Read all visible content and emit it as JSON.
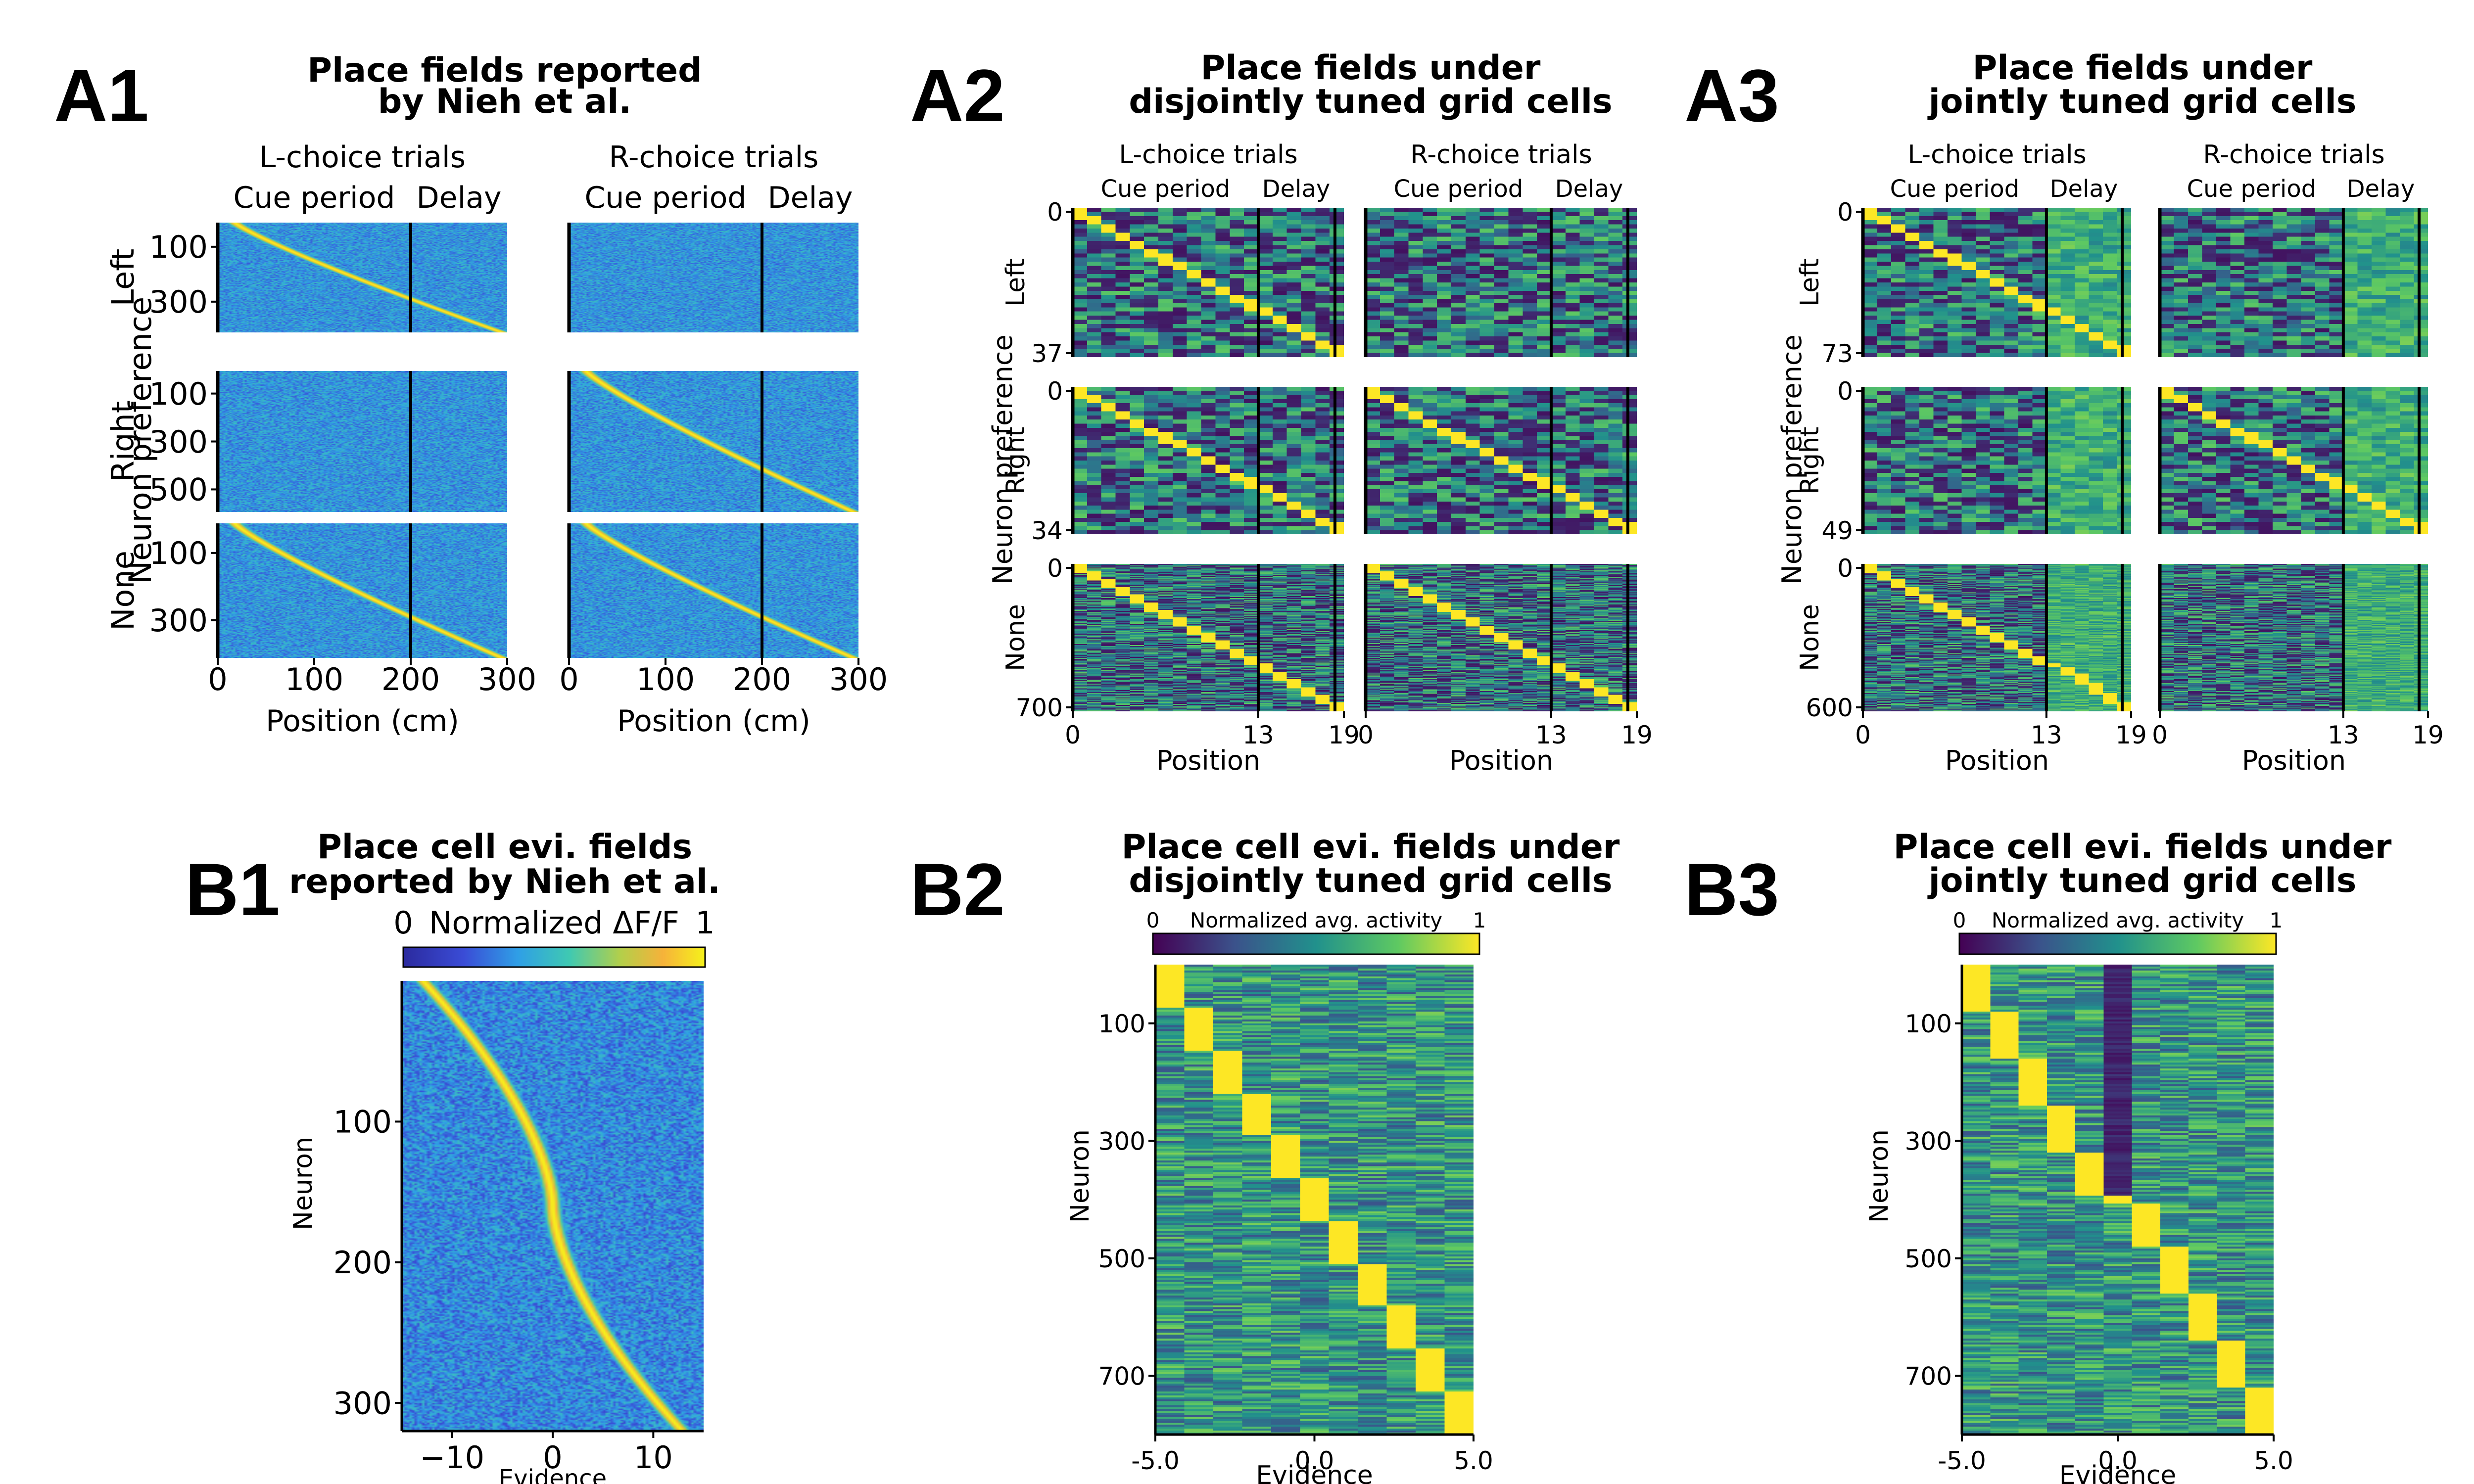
{
  "chart_data": [
    {
      "type": "heatmap",
      "panel_label": "A1",
      "title": [
        "Place fields reported",
        "by Nieh et al."
      ],
      "ylabel": "Neuron preference",
      "xlabel": "Position (cm)",
      "columns": [
        {
          "title": "L-choice trials",
          "periods": [
            "Cue period",
            "Delay"
          ]
        },
        {
          "title": "R-choice trials",
          "periods": [
            "Cue period",
            "Delay"
          ]
        }
      ],
      "rows": [
        {
          "name": "Left",
          "yticks": [
            "100",
            "300"
          ]
        },
        {
          "name": "Right",
          "yticks": [
            "100",
            "300",
            "500"
          ]
        },
        {
          "name": "None",
          "yticks": [
            "100",
            "300"
          ]
        }
      ],
      "xticks": [
        "0",
        "100",
        "200",
        "300"
      ],
      "xrange": [
        0,
        300
      ],
      "divider": 200,
      "colormap": "jet",
      "sequence_pattern": [
        [
          1,
          0
        ],
        [
          0,
          1
        ],
        [
          1,
          1
        ]
      ]
    },
    {
      "type": "heatmap",
      "panel_label": "A2",
      "title": [
        "Place fields under",
        "disjointly tuned grid cells"
      ],
      "ylabel": "Neuron preference",
      "xlabel": "Position",
      "columns": [
        {
          "title": "L-choice trials",
          "periods": [
            "Cue period",
            "Delay"
          ]
        },
        {
          "title": "R-choice trials",
          "periods": [
            "Cue period",
            "Delay"
          ]
        }
      ],
      "rows": [
        {
          "name": "Left",
          "yticks": [
            "0",
            "37"
          ]
        },
        {
          "name": "Right",
          "yticks": [
            "0",
            "34"
          ]
        },
        {
          "name": "None",
          "yticks": [
            "0",
            "700"
          ]
        }
      ],
      "xticks": [
        "0",
        "13",
        "19"
      ],
      "xrange": [
        0,
        19
      ],
      "divider": 13,
      "colormap": "viridis",
      "sequence_pattern": [
        [
          1,
          0
        ],
        [
          1,
          1
        ],
        [
          1,
          1
        ]
      ]
    },
    {
      "type": "heatmap",
      "panel_label": "A3",
      "title": [
        "Place fields under",
        "jointly tuned grid cells"
      ],
      "ylabel": "Neuron preference",
      "xlabel": "Position",
      "columns": [
        {
          "title": "L-choice trials",
          "periods": [
            "Cue period",
            "Delay"
          ]
        },
        {
          "title": "R-choice trials",
          "periods": [
            "Cue period",
            "Delay"
          ]
        }
      ],
      "rows": [
        {
          "name": "Left",
          "yticks": [
            "0",
            "73"
          ]
        },
        {
          "name": "Right",
          "yticks": [
            "0",
            "49"
          ]
        },
        {
          "name": "None",
          "yticks": [
            "0",
            "600"
          ]
        }
      ],
      "xticks": [
        "0",
        "13",
        "19"
      ],
      "xrange": [
        0,
        19
      ],
      "divider": 13,
      "colormap": "viridis",
      "sequence_pattern": [
        [
          1,
          0
        ],
        [
          0,
          1
        ],
        [
          1,
          0
        ]
      ]
    },
    {
      "type": "heatmap",
      "panel_label": "B1",
      "title": [
        "Place cell evi. fields",
        "reported by Nieh et al."
      ],
      "colorbar": {
        "label": "Normalized ΔF/F",
        "min_label": "0",
        "max_label": "1"
      },
      "xlabel": "Evidence",
      "ylabel": "Neuron",
      "xticks": [
        "−10",
        "0",
        "10"
      ],
      "xtick_values": [
        -10,
        0,
        10
      ],
      "xrange": [
        -15,
        15
      ],
      "yticks": [
        "100",
        "200",
        "300"
      ],
      "ytick_values": [
        100,
        200,
        300
      ],
      "yrange": [
        0,
        320
      ],
      "colormap": "jet"
    },
    {
      "type": "heatmap",
      "panel_label": "B2",
      "title": [
        "Place cell evi. fields under",
        "disjointly tuned grid cells"
      ],
      "colorbar": {
        "label": "Normalized avg. activity",
        "min_label": "0",
        "max_label": "1"
      },
      "xlabel": "Evidence",
      "ylabel": "Neuron",
      "xticks": [
        "-5.0",
        "0.0",
        "5.0"
      ],
      "xtick_values": [
        -5,
        0,
        5
      ],
      "xrange": [
        -5,
        5
      ],
      "yticks": [
        "100",
        "300",
        "500",
        "700"
      ],
      "ytick_values": [
        100,
        300,
        500,
        700
      ],
      "yrange": [
        0,
        800
      ],
      "evidence_bins": 11,
      "colormap": "viridis"
    },
    {
      "type": "heatmap",
      "panel_label": "B3",
      "title": [
        "Place cell evi. fields under",
        "jointly tuned grid cells"
      ],
      "colorbar": {
        "label": "Normalized avg. activity",
        "min_label": "0",
        "max_label": "1"
      },
      "xlabel": "Evidence",
      "ylabel": "Neuron",
      "xticks": [
        "-5.0",
        "0.0",
        "5.0"
      ],
      "xtick_values": [
        -5,
        0,
        5
      ],
      "xrange": [
        -5,
        5
      ],
      "yticks": [
        "100",
        "300",
        "500",
        "700"
      ],
      "ytick_values": [
        100,
        300,
        500,
        700
      ],
      "yrange": [
        0,
        800
      ],
      "evidence_bins": 11,
      "colormap": "viridis"
    }
  ]
}
